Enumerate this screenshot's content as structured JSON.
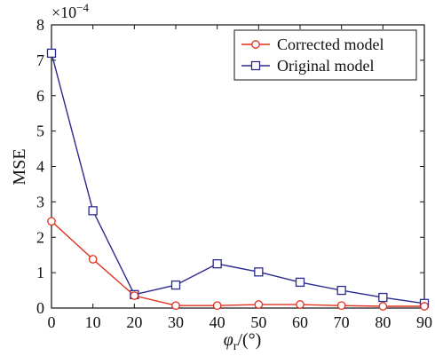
{
  "chart_data": {
    "type": "line",
    "x": [
      0,
      10,
      20,
      30,
      40,
      50,
      60,
      70,
      80,
      90
    ],
    "series": [
      {
        "name": "Corrected model",
        "values": [
          2.45,
          1.38,
          0.35,
          0.07,
          0.07,
          0.1,
          0.1,
          0.07,
          0.05,
          0.05
        ],
        "color": "#e0301e",
        "marker": "circle"
      },
      {
        "name": "Original model",
        "values": [
          7.2,
          2.75,
          0.38,
          0.65,
          1.25,
          1.02,
          0.73,
          0.5,
          0.3,
          0.13
        ],
        "color": "#2b2b8f",
        "marker": "square"
      }
    ],
    "xlabel": "φ_r/(°)",
    "ylabel": "MSE",
    "y_multiplier": "×10^-4",
    "xlim": [
      0,
      90
    ],
    "ylim": [
      0,
      8
    ],
    "xticks": [
      0,
      10,
      20,
      30,
      40,
      50,
      60,
      70,
      80,
      90
    ],
    "yticks": [
      0,
      1,
      2,
      3,
      4,
      5,
      6,
      7,
      8
    ],
    "grid": false,
    "legend_position": "top-right"
  },
  "labels": {
    "ylabel": "MSE",
    "multiplier_base": "×10",
    "multiplier_exp": "−4",
    "xlabel_symbol": "φ",
    "xlabel_sub": "r",
    "xlabel_unit": "/(°)"
  }
}
